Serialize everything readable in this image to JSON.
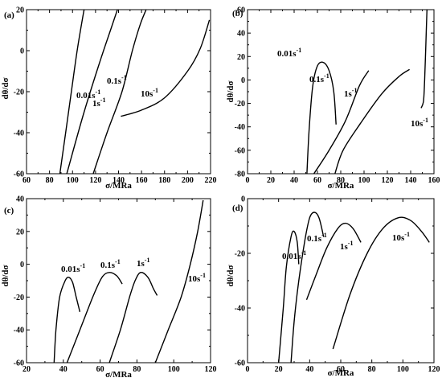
{
  "chart_data": [
    {
      "type": "line",
      "panel_label": "(a)",
      "xlabel": "σ/MRa",
      "ylabel": "dθ/dσ",
      "xlim": [
        60,
        220
      ],
      "ylim": [
        -60,
        20
      ],
      "x_ticks": [
        "60",
        "80",
        "100",
        "120",
        "140",
        "160",
        "180",
        "200",
        "220"
      ],
      "y_ticks": [
        "-60",
        "-40",
        "-20",
        "0",
        "20"
      ],
      "series": [
        {
          "name": "0.01s⁻¹",
          "points": [
            [
              89,
              -60
            ],
            [
              94,
              -40
            ],
            [
              99,
              -20
            ],
            [
              104,
              0
            ],
            [
              110,
              20
            ]
          ]
        },
        {
          "name": "0.1s⁻¹",
          "points": [
            [
              95,
              -60
            ],
            [
              110,
              -30
            ],
            [
              124,
              -5
            ],
            [
              133,
              10
            ],
            [
              139,
              20
            ]
          ]
        },
        {
          "name": "1s⁻¹",
          "points": [
            [
              118,
              -60
            ],
            [
              130,
              -40
            ],
            [
              143,
              -20
            ],
            [
              152,
              0
            ],
            [
              159,
              13
            ],
            [
              164,
              20
            ]
          ]
        },
        {
          "name": "10s⁻¹",
          "points": [
            [
              142,
              -32
            ],
            [
              160,
              -29
            ],
            [
              180,
              -23
            ],
            [
              200,
              -10
            ],
            [
              211,
              1
            ],
            [
              219,
              15
            ]
          ]
        }
      ]
    },
    {
      "type": "line",
      "panel_label": "(b)",
      "xlabel": "σ/MRa",
      "ylabel": "dθ/dσ",
      "xlim": [
        0,
        160
      ],
      "ylim": [
        -80,
        60
      ],
      "x_ticks": [
        "0",
        "20",
        "40",
        "60",
        "80",
        "100",
        "120",
        "140",
        "160"
      ],
      "y_ticks": [
        "-80",
        "-60",
        "-40",
        "-20",
        "0",
        "20",
        "40",
        "60"
      ],
      "series": [
        {
          "name": "0.01s⁻¹",
          "points": [
            [
              51,
              -80
            ],
            [
              53,
              -40
            ],
            [
              56,
              -5
            ],
            [
              60,
              12
            ],
            [
              65,
              15
            ],
            [
              70,
              8
            ],
            [
              74,
              -10
            ],
            [
              76,
              -38
            ]
          ]
        },
        {
          "name": "0.1s⁻¹",
          "points": [
            [
              57,
              -80
            ],
            [
              70,
              -60
            ],
            [
              84,
              -35
            ],
            [
              96,
              -5
            ],
            [
              104,
              8
            ]
          ]
        },
        {
          "name": "1s⁻¹",
          "points": [
            [
              75,
              -80
            ],
            [
              82,
              -60
            ],
            [
              97,
              -37
            ],
            [
              115,
              -12
            ],
            [
              130,
              3
            ],
            [
              139,
              9
            ]
          ]
        },
        {
          "name": "10s⁻¹",
          "points": [
            [
              149,
              -24
            ],
            [
              151,
              -18
            ],
            [
              152,
              0
            ],
            [
              153,
              30
            ],
            [
              154,
              60
            ]
          ]
        }
      ]
    },
    {
      "type": "line",
      "panel_label": "(c)",
      "xlabel": "σ/MRa",
      "ylabel": "dθ/dσ",
      "xlim": [
        20,
        120
      ],
      "ylim": [
        -60,
        40
      ],
      "x_ticks": [
        "20",
        "40",
        "60",
        "80",
        "100",
        "120"
      ],
      "y_ticks": [
        "-60",
        "-40",
        "-20",
        "0",
        "20",
        "40"
      ],
      "series": [
        {
          "name": "0.01s⁻¹",
          "points": [
            [
              35,
              -60
            ],
            [
              36,
              -40
            ],
            [
              38,
              -20
            ],
            [
              41,
              -10
            ],
            [
              43,
              -8
            ],
            [
              45,
              -11
            ],
            [
              47,
              -20
            ],
            [
              49,
              -29
            ]
          ]
        },
        {
          "name": "0.1s⁻¹",
          "points": [
            [
              42,
              -60
            ],
            [
              49,
              -40
            ],
            [
              56,
              -20
            ],
            [
              61,
              -8
            ],
            [
              65,
              -5
            ],
            [
              69,
              -7
            ],
            [
              72,
              -12
            ]
          ]
        },
        {
          "name": "1s⁻¹",
          "points": [
            [
              65,
              -60
            ],
            [
              71,
              -40
            ],
            [
              76,
              -20
            ],
            [
              79,
              -10
            ],
            [
              82,
              -5
            ],
            [
              86,
              -8
            ],
            [
              89,
              -15
            ],
            [
              91,
              -19
            ]
          ]
        },
        {
          "name": "10s⁻¹",
          "points": [
            [
              90,
              -60
            ],
            [
              97,
              -40
            ],
            [
              104,
              -20
            ],
            [
              109,
              0
            ],
            [
              113,
              20
            ],
            [
              116,
              39
            ]
          ]
        }
      ]
    },
    {
      "type": "line",
      "panel_label": "(d)",
      "xlabel": "σ/MRa",
      "ylabel": "dθ/dσ",
      "xlim": [
        0,
        120
      ],
      "ylim": [
        -60,
        0
      ],
      "x_ticks": [
        "0",
        "20",
        "40",
        "60",
        "80",
        "100",
        "120"
      ],
      "y_ticks": [
        "-60",
        "-40",
        "-20",
        "0"
      ],
      "series": [
        {
          "name": "0.01s⁻¹",
          "points": [
            [
              20,
              -60
            ],
            [
              23,
              -40
            ],
            [
              25,
              -25
            ],
            [
              28,
              -14
            ],
            [
              30,
              -12
            ],
            [
              32,
              -16
            ],
            [
              33,
              -24
            ]
          ]
        },
        {
          "name": "0.1s⁻¹",
          "points": [
            [
              28,
              -60
            ],
            [
              30,
              -45
            ],
            [
              33,
              -30
            ],
            [
              37,
              -15
            ],
            [
              40,
              -7
            ],
            [
              43,
              -5
            ],
            [
              46,
              -7
            ],
            [
              49,
              -14
            ]
          ]
        },
        {
          "name": "1s⁻¹",
          "points": [
            [
              38,
              -37
            ],
            [
              44,
              -28
            ],
            [
              51,
              -18
            ],
            [
              58,
              -11
            ],
            [
              63,
              -9
            ],
            [
              68,
              -11
            ],
            [
              73,
              -16
            ]
          ]
        },
        {
          "name": "10s⁻¹",
          "points": [
            [
              55,
              -55
            ],
            [
              66,
              -35
            ],
            [
              77,
              -20
            ],
            [
              87,
              -11
            ],
            [
              97,
              -7
            ],
            [
              105,
              -8
            ],
            [
              112,
              -12
            ],
            [
              117,
              -16
            ]
          ]
        }
      ]
    }
  ]
}
